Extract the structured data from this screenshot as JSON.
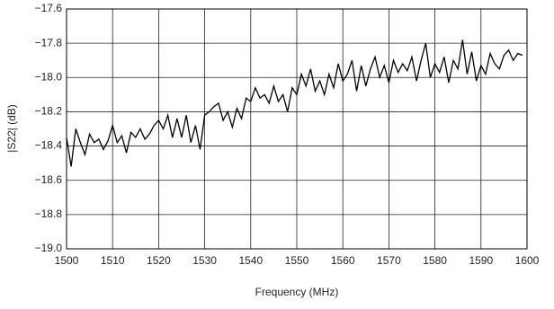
{
  "chart_data": {
    "type": "line",
    "x_label": "Frequency (MHz)",
    "y_label": "|S22| (dB)",
    "x": [
      1500,
      1501,
      1502,
      1503,
      1504,
      1505,
      1506,
      1507,
      1508,
      1509,
      1510,
      1511,
      1512,
      1513,
      1514,
      1515,
      1516,
      1517,
      1518,
      1519,
      1520,
      1521,
      1522,
      1523,
      1524,
      1525,
      1526,
      1527,
      1528,
      1529,
      1530,
      1531,
      1532,
      1533,
      1534,
      1535,
      1536,
      1537,
      1538,
      1539,
      1540,
      1541,
      1542,
      1543,
      1544,
      1545,
      1546,
      1547,
      1548,
      1549,
      1550,
      1551,
      1552,
      1553,
      1554,
      1555,
      1556,
      1557,
      1558,
      1559,
      1560,
      1561,
      1562,
      1563,
      1564,
      1565,
      1566,
      1567,
      1568,
      1569,
      1570,
      1571,
      1572,
      1573,
      1574,
      1575,
      1576,
      1577,
      1578,
      1579,
      1580,
      1581,
      1582,
      1583,
      1584,
      1585,
      1586,
      1587,
      1588,
      1589,
      1590,
      1591,
      1592,
      1593,
      1594,
      1595,
      1596,
      1597,
      1598,
      1599
    ],
    "values": [
      -18.35,
      -18.52,
      -18.3,
      -18.38,
      -18.45,
      -18.33,
      -18.38,
      -18.36,
      -18.42,
      -18.37,
      -18.28,
      -18.38,
      -18.34,
      -18.44,
      -18.32,
      -18.35,
      -18.3,
      -18.36,
      -18.33,
      -18.28,
      -18.25,
      -18.3,
      -18.22,
      -18.35,
      -18.24,
      -18.35,
      -18.22,
      -18.38,
      -18.28,
      -18.42,
      -18.22,
      -18.2,
      -18.17,
      -18.15,
      -18.25,
      -18.2,
      -18.29,
      -18.18,
      -18.24,
      -18.12,
      -18.14,
      -18.06,
      -18.12,
      -18.1,
      -18.15,
      -18.05,
      -18.14,
      -18.1,
      -18.2,
      -18.06,
      -18.1,
      -17.98,
      -18.05,
      -17.95,
      -18.08,
      -18.02,
      -18.1,
      -17.98,
      -18.06,
      -17.92,
      -18.02,
      -17.98,
      -17.9,
      -18.08,
      -17.93,
      -18.05,
      -17.95,
      -17.88,
      -18.0,
      -17.93,
      -18.03,
      -17.9,
      -17.97,
      -17.92,
      -17.96,
      -17.88,
      -18.02,
      -17.9,
      -17.8,
      -18.0,
      -17.92,
      -17.97,
      -17.88,
      -18.03,
      -17.9,
      -17.95,
      -17.78,
      -17.98,
      -17.85,
      -18.02,
      -17.93,
      -17.98,
      -17.86,
      -17.92,
      -17.95,
      -17.87,
      -17.84,
      -17.9,
      -17.86,
      -17.87
    ],
    "color": "#000000",
    "xlim": [
      1500,
      1600
    ],
    "xticks": [
      1500,
      1510,
      1520,
      1530,
      1540,
      1550,
      1560,
      1570,
      1580,
      1590,
      1600
    ],
    "ylim": [
      -19.0,
      -17.6
    ],
    "yticks": [
      {
        "value": -19.0,
        "label": "−19.0"
      },
      {
        "value": -18.8,
        "label": "−18.8"
      },
      {
        "value": -18.6,
        "label": "−18.6"
      },
      {
        "value": -18.4,
        "label": "−18.4"
      },
      {
        "value": -18.2,
        "label": "−18.2"
      },
      {
        "value": -18.0,
        "label": "−18.0"
      },
      {
        "value": -17.8,
        "label": "−17.8"
      },
      {
        "value": -17.6,
        "label": "−17.6"
      }
    ],
    "grid": true
  }
}
